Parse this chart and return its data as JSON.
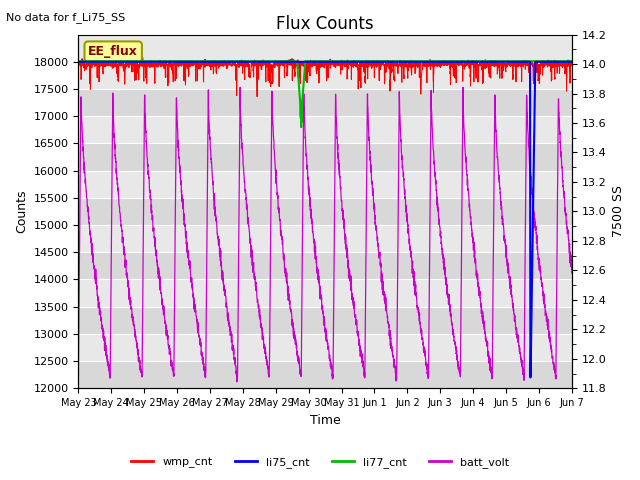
{
  "title": "Flux Counts",
  "top_left_text": "No data for f_Li75_SS",
  "xlabel": "Time",
  "ylabel_left": "Counts",
  "ylabel_right": "7500 SS",
  "ylim_left": [
    12000,
    18500
  ],
  "ylim_right": [
    11.8,
    14.2
  ],
  "yticks_left": [
    12000,
    12500,
    13000,
    13500,
    14000,
    14500,
    15000,
    15500,
    16000,
    16500,
    17000,
    17500,
    18000
  ],
  "yticks_right": [
    11.8,
    12.0,
    12.2,
    12.4,
    12.6,
    12.8,
    13.0,
    13.2,
    13.4,
    13.6,
    13.8,
    14.0,
    14.2
  ],
  "xtick_labels": [
    "May 23",
    "May 24",
    "May 25",
    "May 26",
    "May 27",
    "May 28",
    "May 29",
    "May 30",
    "May 31",
    "Jun 1",
    "Jun 2",
    "Jun 3",
    "Jun 4",
    "Jun 5",
    "Jun 6",
    "Jun 7"
  ],
  "wmp_color": "#ff0000",
  "li75_color": "#0000ff",
  "li77_color": "#00bb00",
  "batt_color": "#cc00cc",
  "annotation_text": "EE_flux",
  "annotation_bg": "#ffff99",
  "annotation_border": "#999900",
  "bg_dark": "#d8d8d8",
  "bg_light": "#e8e8e8",
  "grid_color": "#ffffff",
  "n_days": 15.5,
  "n_pts": 3000
}
